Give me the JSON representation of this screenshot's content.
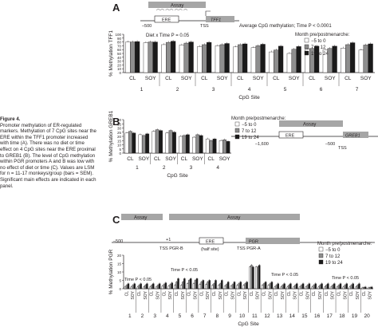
{
  "caption": {
    "label": "Figure 4.",
    "text": "Promoter methylation of ER-regulated markers. Methylation of 7 CpG sites near the ERE within the TFF1 promoter increased with time (A). There was no diet or time effect on 4 CpG sites near the ERE proximal to GREB1 (B). The level of CpG methylation within PGR promoters A and B was low with no effect of diet or time (C). Values are LSM for n = 11-17 monkeys/group (bars = SEM). Significant main effects are indicated in each panel."
  },
  "panelA": {
    "letter": "A",
    "schematic": {
      "assay": "Assay",
      "ere": "ERE",
      "gene": "TFF1",
      "tss": "TSS",
      "pos": "–500"
    },
    "stats": {
      "diet_time": "Diet x Time P = 0.05",
      "avg": "Average CpG methylation; Time P < 0.0001"
    },
    "legend": {
      "title": "Month pre/postmenarche:",
      "items": [
        "−5 to 0",
        "7 to 12",
        "19 to 24"
      ]
    },
    "ylabel": "% Methylation TFF1",
    "xlabel": "CpG Site",
    "diets": [
      "CL",
      "SOY"
    ],
    "sites": [
      "1",
      "2",
      "3",
      "4",
      "5",
      "6",
      "7"
    ],
    "yticks": [
      "0",
      "10",
      "20",
      "30",
      "40",
      "50",
      "60",
      "70",
      "80",
      "90",
      "100"
    ]
  },
  "panelB": {
    "letter": "B",
    "schematic": {
      "assay": "Assay",
      "ere": "ERE",
      "gene": "GREB1",
      "tss": "TSS",
      "pos1": "–1,600",
      "pos2": "–500"
    },
    "legend": {
      "title": "Month pre/postmenarche:",
      "items": [
        "−5 to 0",
        "7 to 12",
        "19 to 24"
      ]
    },
    "ylabel": "% Methylation GREB1",
    "xlabel": "CpG Site",
    "diets": [
      "CL",
      "SOY"
    ],
    "sites": [
      "1",
      "2",
      "3",
      "4"
    ],
    "yticks": [
      "0",
      "5",
      "10",
      "15",
      "20",
      "25",
      "30",
      "35",
      "40"
    ]
  },
  "panelC": {
    "letter": "C",
    "schematic": {
      "assay1": "Assay",
      "assay2": "Assay",
      "ere": "ERE",
      "half": "(half site)",
      "pgr": "PGR",
      "tssb": "TSS PGR-B",
      "tssa": "TSS PGR-A",
      "pos": "–500",
      "plus1": "+1"
    },
    "legend": {
      "title": "Month pre/postmenarche:",
      "items": [
        "−5 to 0",
        "7 to 12",
        "19 to 24"
      ]
    },
    "time_labels": [
      "Time P < 0.05",
      "Time P < 0.05",
      "Time P < 0.05",
      "Time P < 0.05"
    ],
    "ylabel": "% Methylation PGR",
    "xlabel": "CpG Site",
    "diets": [
      "CL",
      "SOY"
    ],
    "sites": [
      "1",
      "2",
      "3",
      "4",
      "5",
      "6",
      "7",
      "8",
      "9",
      "10",
      "11",
      "12",
      "13",
      "14",
      "15",
      "16",
      "17",
      "18",
      "19",
      "20"
    ],
    "yticks": [
      "0",
      "5",
      "10",
      "15",
      "20"
    ]
  },
  "colors": {
    "m1": "#ffffff",
    "m2": "#8e8e8e",
    "m3": "#1a1a1a",
    "assay": "#a6a6a6",
    "bg": "#ffffff"
  },
  "chart_data": [
    {
      "type": "bar",
      "title": "",
      "ylabel": "% Methylation TFF1",
      "xlabel": "CpG Site",
      "ylim": [
        0,
        100
      ],
      "categories": [
        "1 CL",
        "1 SOY",
        "2 CL",
        "2 SOY",
        "3 CL",
        "3 SOY",
        "4 CL",
        "4 SOY",
        "5 CL",
        "5 SOY",
        "6 CL",
        "6 SOY",
        "7 CL",
        "7 SOY"
      ],
      "series": [
        {
          "name": "−5 to 0",
          "values": [
            80,
            78,
            73,
            72,
            68,
            70,
            67,
            65,
            54,
            50,
            61,
            60,
            64,
            59
          ]
        },
        {
          "name": "7 to 12",
          "values": [
            80,
            80,
            79,
            77,
            73,
            73,
            73,
            70,
            59,
            61,
            63,
            63,
            73,
            72
          ]
        },
        {
          "name": "19 to 24",
          "values": [
            81,
            80,
            82,
            80,
            79,
            76,
            75,
            74,
            69,
            68,
            69,
            69,
            78,
            75
          ]
        }
      ]
    },
    {
      "type": "bar",
      "title": "",
      "ylabel": "% Methylation GREB1",
      "xlabel": "CpG Site",
      "ylim": [
        0,
        40
      ],
      "categories": [
        "1 CL",
        "1 SOY",
        "2 CL",
        "2 SOY",
        "3 CL",
        "3 SOY",
        "4 CL",
        "4 SOY"
      ],
      "series": [
        {
          "name": "−5 to 0",
          "values": [
            24,
            22,
            26,
            24,
            20,
            19,
            17,
            15
          ]
        },
        {
          "name": "7 to 12",
          "values": [
            26,
            21,
            28,
            27,
            21,
            22,
            15,
            16
          ]
        },
        {
          "name": "19 to 24",
          "values": [
            24,
            23,
            27,
            25,
            22,
            21,
            17,
            14
          ]
        }
      ]
    },
    {
      "type": "bar",
      "title": "",
      "ylabel": "% Methylation PGR",
      "xlabel": "CpG Site",
      "ylim": [
        0,
        20
      ],
      "categories": [
        "1 CL",
        "1 SOY",
        "2 CL",
        "2 SOY",
        "3 CL",
        "3 SOY",
        "4 CL",
        "4 SOY",
        "5 CL",
        "5 SOY",
        "6 CL",
        "6 SOY",
        "7 CL",
        "7 SOY",
        "8 CL",
        "8 SOY",
        "9 CL",
        "9 SOY",
        "10 CL",
        "10 SOY",
        "11 CL",
        "11 SOY",
        "12 CL",
        "12 SOY",
        "13 CL",
        "13 SOY",
        "14 CL",
        "14 SOY",
        "15 CL",
        "15 SOY",
        "16 CL",
        "16 SOY",
        "17 CL",
        "17 SOY",
        "18 CL",
        "18 SOY",
        "19 CL",
        "19 SOY",
        "20 CL",
        "20 SOY"
      ],
      "series": [
        {
          "name": "−5 to 0",
          "values": [
            1,
            1,
            1,
            1,
            1,
            1,
            1.5,
            1.5,
            2,
            2,
            3,
            3,
            2.5,
            2.5,
            2,
            2,
            1.5,
            1.5,
            2,
            2,
            13,
            13,
            2,
            2,
            1,
            1,
            1,
            1,
            1,
            1,
            1,
            1,
            1,
            1,
            1,
            1,
            1,
            1,
            0.5,
            0.5
          ]
        },
        {
          "name": "7 to 12",
          "values": [
            2,
            2,
            2,
            2,
            2,
            2,
            2.5,
            2.5,
            4,
            4,
            5,
            5,
            4,
            4,
            3,
            3,
            2.5,
            2.5,
            3,
            3,
            14,
            13,
            3,
            3,
            2,
            2,
            2,
            2,
            2,
            2,
            2,
            2,
            2,
            2,
            2,
            2,
            2,
            2,
            0.8,
            0.8
          ]
        },
        {
          "name": "19 to 24",
          "values": [
            3,
            3,
            3,
            3,
            3,
            3,
            3.5,
            3.5,
            6,
            6,
            6,
            6,
            5,
            5,
            5,
            5,
            4,
            4,
            4,
            4,
            13,
            14,
            4,
            4,
            3,
            3,
            3,
            3,
            3,
            3,
            3,
            3,
            3,
            3,
            3,
            3,
            3,
            3,
            1,
            1
          ]
        }
      ]
    }
  ]
}
